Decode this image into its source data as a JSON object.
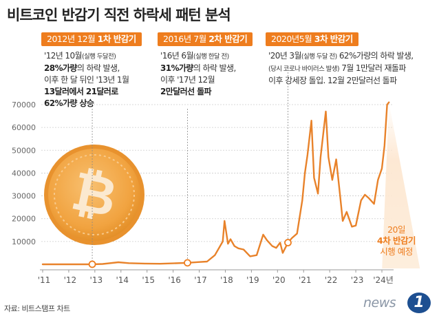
{
  "title": "비트코인 반감기 직전 하락세 패턴 분석",
  "annotations": [
    {
      "badge_prefix": "2012년 12월 ",
      "badge_bold": "1차 반감기",
      "lines": [
        [
          "'12년 10월",
          "(실행 두달전)",
          ""
        ],
        [
          "",
          "28%가량",
          "의 하락 발생,"
        ],
        [
          "",
          "",
          "이후 한 달 뒤인 '13년 1월"
        ],
        [
          "",
          "13달러에서 21달러로",
          ""
        ],
        [
          "",
          "62%가량 상승",
          ""
        ]
      ]
    },
    {
      "badge_prefix": "2016년 7월 ",
      "badge_bold": "2차 반감기",
      "lines": [
        [
          "'16년 6월",
          "(실행 한달 전)",
          ""
        ],
        [
          "",
          "31%가량",
          "의 하락 발생,"
        ],
        [
          "",
          "",
          "이후 '17년 12월"
        ],
        [
          "",
          "2만달러선 돌파",
          ""
        ]
      ]
    },
    {
      "badge_prefix": "2020년5월 ",
      "badge_bold": "3차 반감기",
      "lines": [
        [
          "'20년 3월",
          "(실행 두달 전)",
          " 62%가량의 하락 발생,"
        ],
        [
          "",
          "(당시 코로나 바이러스 발생)",
          " 7월 1만달러 재돌파"
        ],
        [
          "",
          "",
          "이후 강세장 돌입. 12월 2만달러선 돌파"
        ]
      ]
    }
  ],
  "halving4": {
    "line1": "20일",
    "line2": "4차 반감기",
    "line3": "시행 예정"
  },
  "source": "자료: 비트스탬프 차트",
  "logo": {
    "text": "news",
    "mark": "1"
  },
  "colors": {
    "accent": "#ee7d1e",
    "line": "#e8822a",
    "axis": "#999999",
    "grid": "#cccccc",
    "coin": "#f1a340"
  },
  "icons": [
    "bitcoin-coin-icon",
    "news1-logo-icon"
  ],
  "chart_data": {
    "type": "line",
    "title": "",
    "xlabel": "",
    "ylabel": "",
    "ylim": [
      0,
      75000
    ],
    "xlim": [
      2011,
      2024.5
    ],
    "y_ticks": [
      10000,
      20000,
      30000,
      40000,
      50000,
      60000,
      70000
    ],
    "y_tick_labels": [
      "10000",
      "20000",
      "30000",
      "40000",
      "50000",
      "60000",
      "70000"
    ],
    "x_ticks": [
      2011,
      2012,
      2013,
      2014,
      2015,
      2016,
      2017,
      2018,
      2019,
      2020,
      2021,
      2022,
      2023,
      2024
    ],
    "x_tick_labels": [
      "'11",
      "'12",
      "'13",
      "'14",
      "'15",
      "'16",
      "'17",
      "'18",
      "'19",
      "'20",
      "'21",
      "'22",
      "'23",
      "'24년"
    ],
    "halving_markers": [
      {
        "x": 2012.9,
        "y": 13
      },
      {
        "x": 2016.55,
        "y": 650
      },
      {
        "x": 2020.4,
        "y": 9500
      }
    ],
    "series": [
      {
        "points": [
          [
            2011.0,
            1
          ],
          [
            2011.5,
            15
          ],
          [
            2012.0,
            6
          ],
          [
            2012.5,
            7
          ],
          [
            2012.9,
            13
          ],
          [
            2013.3,
            140
          ],
          [
            2013.9,
            900
          ],
          [
            2014.3,
            500
          ],
          [
            2014.9,
            320
          ],
          [
            2015.5,
            250
          ],
          [
            2016.0,
            430
          ],
          [
            2016.55,
            650
          ],
          [
            2017.0,
            1000
          ],
          [
            2017.3,
            1200
          ],
          [
            2017.6,
            4000
          ],
          [
            2017.9,
            10000
          ],
          [
            2017.97,
            19000
          ],
          [
            2018.1,
            9000
          ],
          [
            2018.2,
            11000
          ],
          [
            2018.35,
            8000
          ],
          [
            2018.5,
            7000
          ],
          [
            2018.7,
            6500
          ],
          [
            2018.95,
            3500
          ],
          [
            2019.2,
            4000
          ],
          [
            2019.45,
            13000
          ],
          [
            2019.6,
            10500
          ],
          [
            2019.8,
            8000
          ],
          [
            2019.95,
            7200
          ],
          [
            2020.1,
            9500
          ],
          [
            2020.2,
            5000
          ],
          [
            2020.4,
            9500
          ],
          [
            2020.55,
            11500
          ],
          [
            2020.75,
            13500
          ],
          [
            2020.95,
            28000
          ],
          [
            2021.05,
            40000
          ],
          [
            2021.15,
            48000
          ],
          [
            2021.3,
            63000
          ],
          [
            2021.4,
            38000
          ],
          [
            2021.55,
            31000
          ],
          [
            2021.65,
            47000
          ],
          [
            2021.85,
            67000
          ],
          [
            2021.95,
            47000
          ],
          [
            2022.1,
            37000
          ],
          [
            2022.25,
            46000
          ],
          [
            2022.4,
            30000
          ],
          [
            2022.5,
            19000
          ],
          [
            2022.65,
            23000
          ],
          [
            2022.85,
            16500
          ],
          [
            2023.0,
            17000
          ],
          [
            2023.2,
            28000
          ],
          [
            2023.35,
            30500
          ],
          [
            2023.5,
            29000
          ],
          [
            2023.7,
            26500
          ],
          [
            2023.85,
            37000
          ],
          [
            2024.0,
            42000
          ],
          [
            2024.1,
            52000
          ],
          [
            2024.2,
            70000
          ],
          [
            2024.27,
            71000
          ]
        ]
      }
    ]
  }
}
